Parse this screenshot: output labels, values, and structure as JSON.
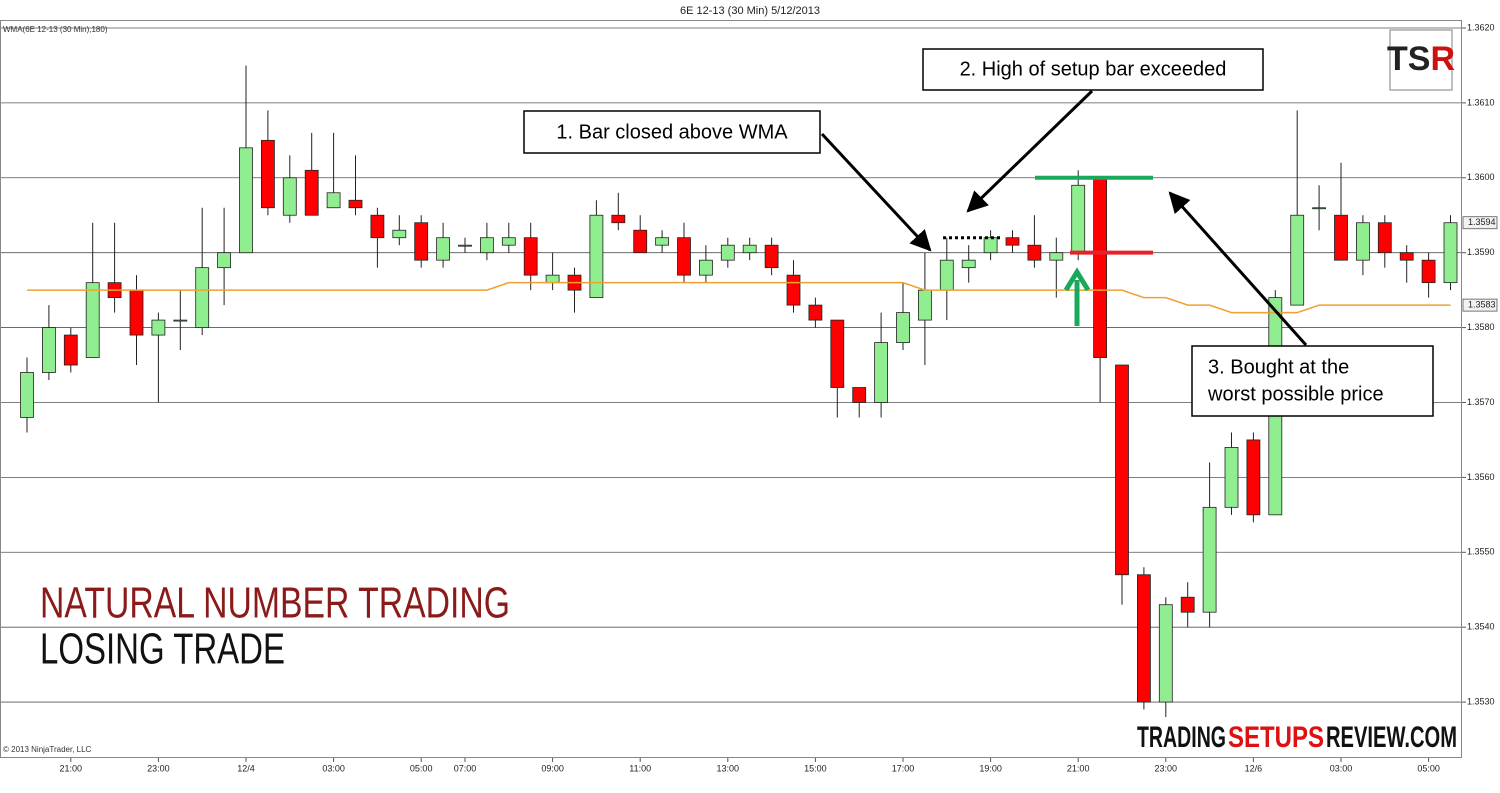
{
  "chart_data": {
    "type": "candlestick",
    "title": "6E 12-13 (30 Min)  5/12/2013",
    "copyright": "© 2013 NinjaTrader, LLC",
    "categories": [
      null,
      null,
      "21:00",
      null,
      null,
      null,
      "23:00",
      null,
      null,
      null,
      "12/4",
      null,
      null,
      null,
      "03:00",
      null,
      null,
      null,
      "05:00",
      null,
      "07:00",
      null,
      null,
      null,
      "09:00",
      null,
      null,
      null,
      "11:00",
      null,
      null,
      null,
      "13:00",
      null,
      null,
      null,
      "15:00",
      null,
      null,
      null,
      "17:00",
      null,
      null,
      null,
      "19:00",
      null,
      null,
      null,
      "21:00",
      null,
      null,
      null,
      "23:00",
      null,
      null,
      null,
      "12/6",
      null,
      null,
      null,
      "03:00",
      null,
      null,
      null,
      "05:00",
      null
    ],
    "open": [
      1.3568,
      1.3574,
      1.3579,
      1.3576,
      1.3586,
      1.3585,
      1.3579,
      1.3581,
      1.358,
      1.3588,
      1.359,
      1.3605,
      1.3595,
      1.3601,
      1.3596,
      1.3597,
      1.3595,
      1.3592,
      1.3594,
      1.3589,
      1.3591,
      1.359,
      1.3591,
      1.3592,
      1.3586,
      1.3587,
      1.3584,
      1.3595,
      1.3593,
      1.3591,
      1.3592,
      1.3587,
      1.3589,
      1.359,
      1.3591,
      1.3587,
      1.3583,
      1.3581,
      1.3572,
      1.357,
      1.3578,
      1.3581,
      1.3585,
      1.3588,
      1.359,
      1.3592,
      1.3591,
      1.3589,
      1.359,
      1.36,
      1.3575,
      1.3547,
      1.353,
      1.3544,
      1.3542,
      1.3556,
      1.3565,
      1.3555,
      1.3583,
      1.3596,
      1.3595,
      1.3589,
      1.3594,
      1.359,
      1.3589,
      1.3586
    ],
    "high": [
      1.3576,
      1.3583,
      1.358,
      1.3594,
      1.3594,
      1.3587,
      1.3582,
      1.3585,
      1.3596,
      1.3596,
      1.3615,
      1.3609,
      1.3603,
      1.3606,
      1.3606,
      1.3603,
      1.3596,
      1.3595,
      1.3595,
      1.3594,
      1.3592,
      1.3594,
      1.3594,
      1.3594,
      1.359,
      1.3588,
      1.3597,
      1.3598,
      1.3595,
      1.3593,
      1.3594,
      1.3591,
      1.3592,
      1.3592,
      1.3592,
      1.3589,
      1.3584,
      1.3581,
      1.3572,
      1.3582,
      1.3586,
      1.359,
      1.3592,
      1.3591,
      1.3593,
      1.3593,
      1.3595,
      1.3592,
      1.3601,
      1.36,
      1.3575,
      1.3548,
      1.3544,
      1.3546,
      1.3562,
      1.3566,
      1.3566,
      1.3585,
      1.3609,
      1.3599,
      1.3602,
      1.3595,
      1.3595,
      1.3591,
      1.359,
      1.3595
    ],
    "low": [
      1.3566,
      1.3573,
      1.3574,
      1.3576,
      1.3582,
      1.3575,
      1.357,
      1.3577,
      1.3579,
      1.3583,
      1.359,
      1.3595,
      1.3594,
      1.3595,
      1.3596,
      1.3595,
      1.3588,
      1.3591,
      1.3588,
      1.3588,
      1.359,
      1.3589,
      1.359,
      1.3585,
      1.3585,
      1.3582,
      1.3584,
      1.3593,
      1.359,
      1.359,
      1.3586,
      1.3586,
      1.3588,
      1.3589,
      1.3587,
      1.3582,
      1.358,
      1.3568,
      1.3568,
      1.3568,
      1.3577,
      1.3575,
      1.3581,
      1.3586,
      1.3589,
      1.359,
      1.3588,
      1.3584,
      1.3589,
      1.357,
      1.3543,
      1.3529,
      1.3528,
      1.354,
      1.354,
      1.3555,
      1.3554,
      1.3555,
      1.3583,
      1.3593,
      1.3589,
      1.3587,
      1.3588,
      1.3586,
      1.3584,
      1.3585
    ],
    "close": [
      1.3574,
      1.358,
      1.3575,
      1.3586,
      1.3584,
      1.3579,
      1.3581,
      1.3581,
      1.3588,
      1.359,
      1.3604,
      1.3596,
      1.36,
      1.3595,
      1.3598,
      1.3596,
      1.3592,
      1.3593,
      1.3589,
      1.3592,
      1.3591,
      1.3592,
      1.3592,
      1.3587,
      1.3587,
      1.3585,
      1.3595,
      1.3594,
      1.359,
      1.3592,
      1.3587,
      1.3589,
      1.3591,
      1.3591,
      1.3588,
      1.3583,
      1.3581,
      1.3572,
      1.357,
      1.3578,
      1.3582,
      1.3585,
      1.3589,
      1.3589,
      1.3592,
      1.3591,
      1.3589,
      1.359,
      1.3599,
      1.3576,
      1.3547,
      1.353,
      1.3543,
      1.3542,
      1.3556,
      1.3564,
      1.3555,
      1.3584,
      1.3595,
      1.3596,
      1.3589,
      1.3594,
      1.359,
      1.3589,
      1.3586,
      1.3594
    ],
    "up_color": "#90ee90",
    "down_color": "#ff0000",
    "overlays": [
      {
        "name": "WMA(6E 12-13 (30 Min),180)",
        "color": "#f0a030",
        "values": [
          1.3585,
          1.3585,
          1.3585,
          1.3585,
          1.3585,
          1.3585,
          1.3585,
          1.3585,
          1.3585,
          1.3585,
          1.3585,
          1.3585,
          1.3585,
          1.3585,
          1.3585,
          1.3585,
          1.3585,
          1.3585,
          1.3585,
          1.3585,
          1.3585,
          1.3585,
          1.3586,
          1.3586,
          1.3586,
          1.3586,
          1.3586,
          1.3586,
          1.3586,
          1.3586,
          1.3586,
          1.3586,
          1.3586,
          1.3586,
          1.3586,
          1.3586,
          1.3586,
          1.3586,
          1.3586,
          1.3586,
          1.3586,
          1.3585,
          1.3585,
          1.3585,
          1.3585,
          1.3585,
          1.3585,
          1.3585,
          1.3585,
          1.3585,
          1.3585,
          1.3584,
          1.3584,
          1.3583,
          1.3583,
          1.3582,
          1.3582,
          1.3582,
          1.3582,
          1.3583,
          1.3583,
          1.3583,
          1.3583,
          1.3583,
          1.3583,
          1.3583
        ]
      }
    ],
    "ylim": [
      1.3523,
      1.3621
    ],
    "yticks": [
      {
        "value": 1.353,
        "label": "1.3530"
      },
      {
        "value": 1.354,
        "label": "1.3540"
      },
      {
        "value": 1.355,
        "label": "1.3550"
      },
      {
        "value": 1.356,
        "label": "1.3560"
      },
      {
        "value": 1.357,
        "label": "1.3570"
      },
      {
        "value": 1.358,
        "label": "1.3580"
      },
      {
        "value": 1.359,
        "label": "1.3590"
      },
      {
        "value": 1.36,
        "label": "1.3600"
      },
      {
        "value": 1.361,
        "label": "1.3610"
      },
      {
        "value": 1.362,
        "label": "1.3620"
      }
    ],
    "grid": true,
    "price_markers": [
      1.3594,
      1.3583
    ],
    "levels": [
      {
        "value": 1.3592,
        "color": "#000000",
        "style": "dotted"
      },
      {
        "value": 1.36,
        "color": "#1aa85a",
        "style": "solid"
      },
      {
        "value": 1.359,
        "color": "#e8202a",
        "style": "solid"
      }
    ],
    "annotations": [
      {
        "lines": [
          "1. Bar closed above WMA"
        ]
      },
      {
        "lines": [
          "2. High of setup bar exceeded"
        ]
      },
      {
        "lines": [
          "3. Bought at the",
          "worst possible price"
        ]
      }
    ],
    "headline": [
      "NATURAL NUMBER TRADING",
      "LOSING TRADE"
    ],
    "logo": [
      "TS",
      "R"
    ],
    "brand": [
      "TRADING",
      "SETUPS",
      "REVIEW.COM"
    ]
  }
}
